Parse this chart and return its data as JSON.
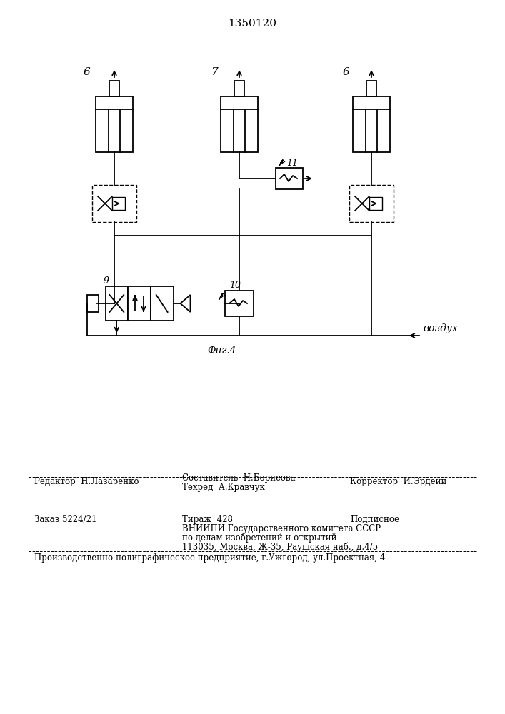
{
  "patent_number": "1350120",
  "fig_label": "Фиг.4",
  "vozdukh_label": "воздух",
  "label_6": "6",
  "label_7": "7",
  "label_9": "9",
  "label_10": "10",
  "label_11": "11",
  "editor_line": "Редактор  Н.Лазаренко",
  "compiler_line": "Составитель  Н.Борисова",
  "techred_line": "Техред  А.Кравчук",
  "corrector_line": "Корректор  И.Эрдейи",
  "zakaz_line": "Заказ 5224/21",
  "tirazh_line": "Тираж  428",
  "podpisnoe_line": "Подписное",
  "vnipi_line": "ВНИИПИ Государственного комитета СССР",
  "po_delam_line": "по делам изобретений и открытий",
  "address_line": "113035, Москва, Ж-35, Раушская наб., д.4/5",
  "production_line": "Производственно-полиграфическое предприятие, г.Ужгород, ул.Проектная, 4",
  "bg_color": "#ffffff",
  "lc": "#000000"
}
